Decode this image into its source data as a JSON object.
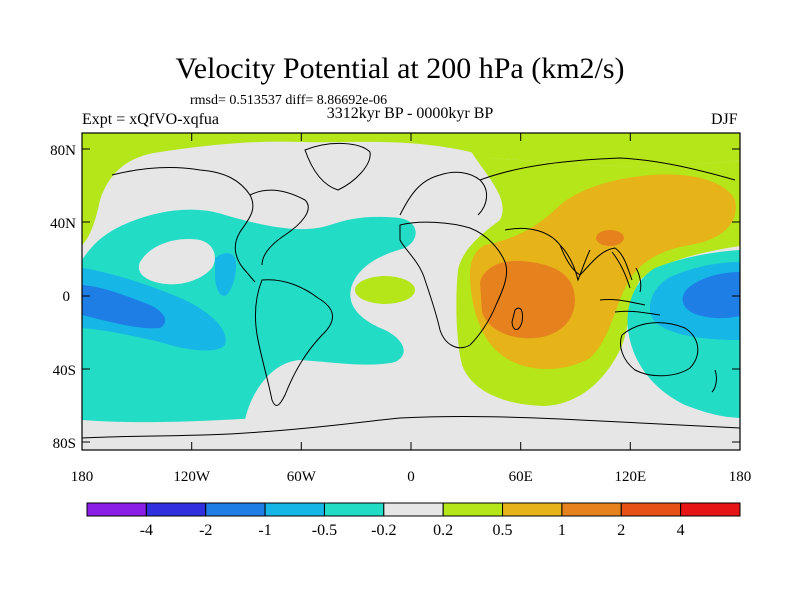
{
  "title": "Velocity Potential at 200 hPa (km2/s)",
  "stats": "rmsd= 0.513537 diff= 8.86692e-06",
  "period": "3312kyr BP - 0000kyr BP",
  "experiment": "Expt = xQfVO-xqfua",
  "season": "DJF",
  "axes": {
    "y_ticks": [
      "80N",
      "40N",
      "0",
      "40S",
      "80S"
    ],
    "x_ticks": [
      "180",
      "120W",
      "60W",
      "0",
      "60E",
      "120E",
      "180"
    ]
  },
  "colorbar": {
    "colors": [
      "#8a1ee6",
      "#2f2fe0",
      "#1e7ee6",
      "#16b6e6",
      "#23dcc5",
      "#e6e6e6",
      "#b4e619",
      "#e6b419",
      "#e6821e",
      "#e65014",
      "#e61414"
    ],
    "labels": [
      "-4",
      "-2",
      "-1",
      "-0.5",
      "-0.2",
      "0.2",
      "0.5",
      "1",
      "2",
      "4"
    ]
  },
  "map_colors": {
    "neutral": "#e6e6e6",
    "green": "#b4e619",
    "cyan": "#23dcc5",
    "lightblue": "#16b6e6",
    "blue": "#1e7ee6",
    "yellow": "#e6b419",
    "orange": "#e6821e"
  }
}
